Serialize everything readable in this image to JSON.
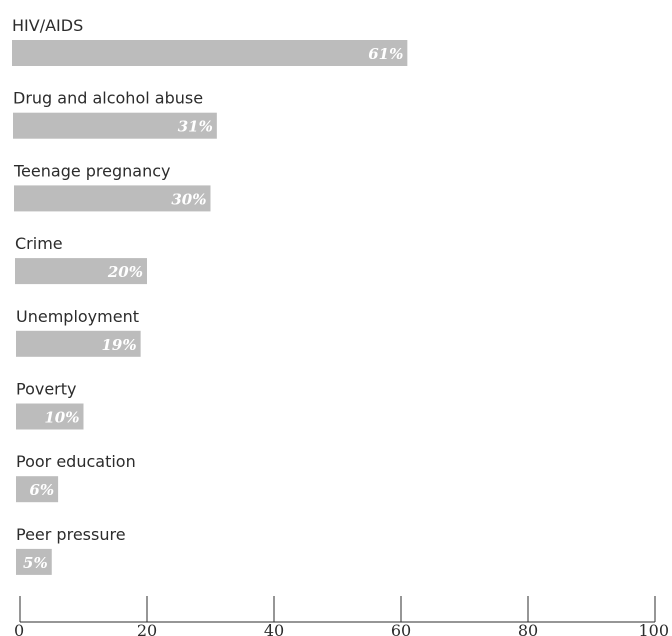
{
  "chart_data": {
    "type": "bar",
    "orientation": "horizontal",
    "categories": [
      "HIV/AIDS",
      "Drug and alcohol abuse",
      "Teenage pregnancy",
      "Crime",
      "Unemployment",
      "Poverty",
      "Poor education",
      "Peer pressure"
    ],
    "values": [
      61,
      31,
      30,
      20,
      19,
      10,
      6,
      5
    ],
    "value_labels": [
      "61%",
      "31%",
      "30%",
      "20%",
      "19%",
      "10%",
      "6%",
      "5%"
    ],
    "xlim": [
      0,
      100
    ],
    "xticks": [
      0,
      20,
      40,
      60,
      80,
      100
    ],
    "xtick_labels": [
      "0",
      "20",
      "40",
      "60",
      "80",
      "100"
    ],
    "grid": false,
    "bar_color": "#bcbcbc",
    "text_color": "#2c2c2c"
  }
}
